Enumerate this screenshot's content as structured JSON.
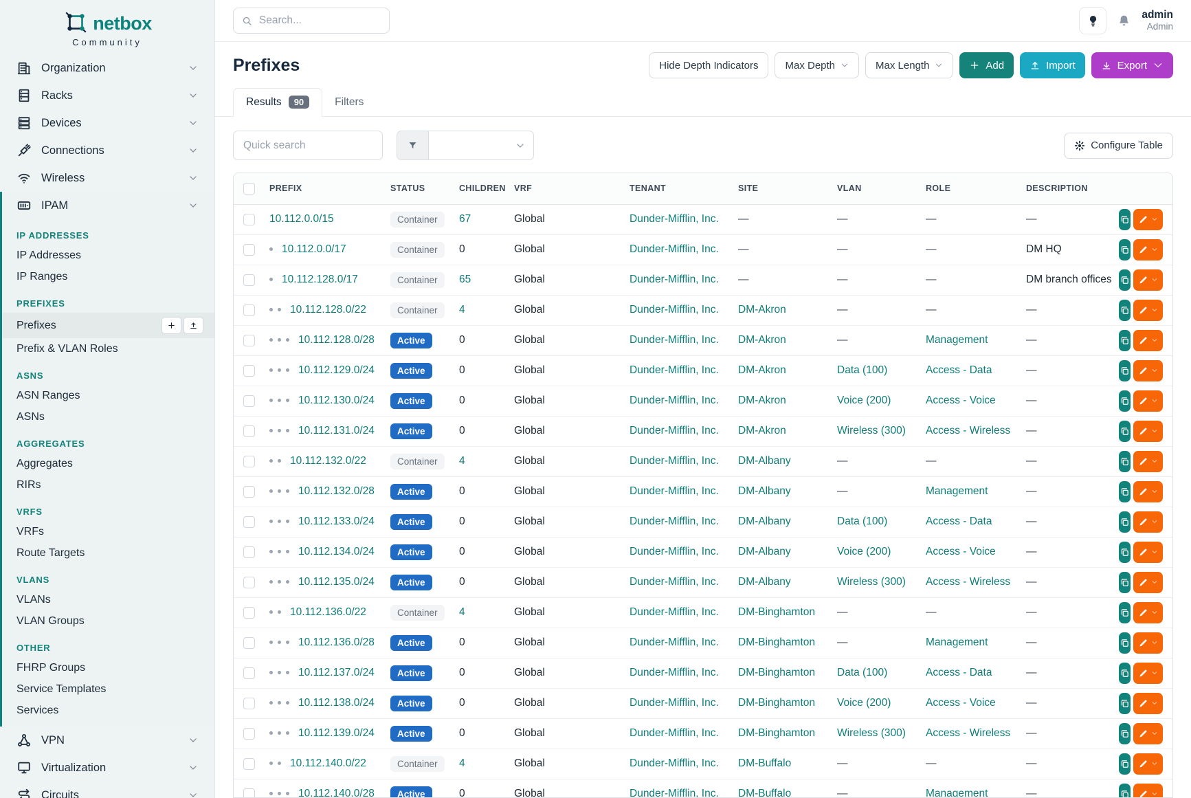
{
  "brand": {
    "name": "netbox",
    "subtitle": "Community"
  },
  "colors": {
    "accent_teal": "#0e827c",
    "link_teal": "#0e7d79",
    "active_badge_blue": "#206bc4",
    "add_green": "#15837a",
    "import_cyan": "#1aa8c2",
    "export_purple": "#ae3ec9",
    "edit_orange": "#f76707",
    "sidebar_bg": "#eef4f3",
    "navy_text": "#17293c"
  },
  "topbar": {
    "search_placeholder": "Search...",
    "user": {
      "name": "admin",
      "role": "Admin"
    },
    "icons": [
      "lightbulb-icon",
      "bell-icon"
    ]
  },
  "sidebar": {
    "top_items": [
      {
        "label": "Organization",
        "icon": "building-icon"
      },
      {
        "label": "Racks",
        "icon": "rack-icon"
      },
      {
        "label": "Devices",
        "icon": "devices-icon"
      },
      {
        "label": "Connections",
        "icon": "plug-icon"
      },
      {
        "label": "Wireless",
        "icon": "wifi-icon"
      }
    ],
    "ipam": {
      "label": "IPAM",
      "icon": "ipam-icon",
      "sections": [
        {
          "title": "IP ADDRESSES",
          "items": [
            {
              "label": "IP Addresses"
            },
            {
              "label": "IP Ranges"
            }
          ]
        },
        {
          "title": "PREFIXES",
          "items": [
            {
              "label": "Prefixes",
              "active": true,
              "quick_buttons": [
                "plus-icon",
                "upload-icon"
              ]
            },
            {
              "label": "Prefix & VLAN Roles"
            }
          ]
        },
        {
          "title": "ASNS",
          "items": [
            {
              "label": "ASN Ranges"
            },
            {
              "label": "ASNs"
            }
          ]
        },
        {
          "title": "AGGREGATES",
          "items": [
            {
              "label": "Aggregates"
            },
            {
              "label": "RIRs"
            }
          ]
        },
        {
          "title": "VRFS",
          "items": [
            {
              "label": "VRFs"
            },
            {
              "label": "Route Targets"
            }
          ]
        },
        {
          "title": "VLANS",
          "items": [
            {
              "label": "VLANs"
            },
            {
              "label": "VLAN Groups"
            }
          ]
        },
        {
          "title": "OTHER",
          "items": [
            {
              "label": "FHRP Groups"
            },
            {
              "label": "Service Templates"
            },
            {
              "label": "Services"
            }
          ]
        }
      ]
    },
    "bottom_items": [
      {
        "label": "VPN",
        "icon": "network-icon"
      },
      {
        "label": "Virtualization",
        "icon": "monitor-icon"
      },
      {
        "label": "Circuits",
        "icon": "circuits-icon"
      }
    ]
  },
  "page": {
    "title": "Prefixes",
    "toolbar": {
      "hide_depth": "Hide Depth Indicators",
      "max_depth": "Max Depth",
      "max_length": "Max Length",
      "add": "Add",
      "import": "Import",
      "export": "Export"
    },
    "tabs": {
      "results": "Results",
      "results_count": "90",
      "filters": "Filters"
    },
    "controls": {
      "quick_search_placeholder": "Quick search",
      "configure_table": "Configure Table"
    }
  },
  "table": {
    "columns": [
      "PREFIX",
      "STATUS",
      "CHILDREN",
      "VRF",
      "TENANT",
      "SITE",
      "VLAN",
      "ROLE",
      "DESCRIPTION"
    ],
    "rows": [
      {
        "depth": 0,
        "prefix": "10.112.0.0/15",
        "status": "Container",
        "children": "67",
        "vrf": "Global",
        "tenant": "Dunder-Mifflin, Inc.",
        "site": "—",
        "vlan": "—",
        "role": "—",
        "description": "—"
      },
      {
        "depth": 1,
        "prefix": "10.112.0.0/17",
        "status": "Container",
        "children": "0",
        "vrf": "Global",
        "tenant": "Dunder-Mifflin, Inc.",
        "site": "—",
        "vlan": "—",
        "role": "—",
        "description": "DM HQ"
      },
      {
        "depth": 1,
        "prefix": "10.112.128.0/17",
        "status": "Container",
        "children": "65",
        "vrf": "Global",
        "tenant": "Dunder-Mifflin, Inc.",
        "site": "—",
        "vlan": "—",
        "role": "—",
        "description": "DM branch offices"
      },
      {
        "depth": 2,
        "prefix": "10.112.128.0/22",
        "status": "Container",
        "children": "4",
        "vrf": "Global",
        "tenant": "Dunder-Mifflin, Inc.",
        "site": "DM-Akron",
        "vlan": "—",
        "role": "—",
        "description": "—"
      },
      {
        "depth": 3,
        "prefix": "10.112.128.0/28",
        "status": "Active",
        "children": "0",
        "vrf": "Global",
        "tenant": "Dunder-Mifflin, Inc.",
        "site": "DM-Akron",
        "vlan": "—",
        "role": "Management",
        "description": "—"
      },
      {
        "depth": 3,
        "prefix": "10.112.129.0/24",
        "status": "Active",
        "children": "0",
        "vrf": "Global",
        "tenant": "Dunder-Mifflin, Inc.",
        "site": "DM-Akron",
        "vlan": "Data (100)",
        "role": "Access - Data",
        "description": "—"
      },
      {
        "depth": 3,
        "prefix": "10.112.130.0/24",
        "status": "Active",
        "children": "0",
        "vrf": "Global",
        "tenant": "Dunder-Mifflin, Inc.",
        "site": "DM-Akron",
        "vlan": "Voice (200)",
        "role": "Access - Voice",
        "description": "—"
      },
      {
        "depth": 3,
        "prefix": "10.112.131.0/24",
        "status": "Active",
        "children": "0",
        "vrf": "Global",
        "tenant": "Dunder-Mifflin, Inc.",
        "site": "DM-Akron",
        "vlan": "Wireless (300)",
        "role": "Access - Wireless",
        "description": "—"
      },
      {
        "depth": 2,
        "prefix": "10.112.132.0/22",
        "status": "Container",
        "children": "4",
        "vrf": "Global",
        "tenant": "Dunder-Mifflin, Inc.",
        "site": "DM-Albany",
        "vlan": "—",
        "role": "—",
        "description": "—"
      },
      {
        "depth": 3,
        "prefix": "10.112.132.0/28",
        "status": "Active",
        "children": "0",
        "vrf": "Global",
        "tenant": "Dunder-Mifflin, Inc.",
        "site": "DM-Albany",
        "vlan": "—",
        "role": "Management",
        "description": "—"
      },
      {
        "depth": 3,
        "prefix": "10.112.133.0/24",
        "status": "Active",
        "children": "0",
        "vrf": "Global",
        "tenant": "Dunder-Mifflin, Inc.",
        "site": "DM-Albany",
        "vlan": "Data (100)",
        "role": "Access - Data",
        "description": "—"
      },
      {
        "depth": 3,
        "prefix": "10.112.134.0/24",
        "status": "Active",
        "children": "0",
        "vrf": "Global",
        "tenant": "Dunder-Mifflin, Inc.",
        "site": "DM-Albany",
        "vlan": "Voice (200)",
        "role": "Access - Voice",
        "description": "—"
      },
      {
        "depth": 3,
        "prefix": "10.112.135.0/24",
        "status": "Active",
        "children": "0",
        "vrf": "Global",
        "tenant": "Dunder-Mifflin, Inc.",
        "site": "DM-Albany",
        "vlan": "Wireless (300)",
        "role": "Access - Wireless",
        "description": "—"
      },
      {
        "depth": 2,
        "prefix": "10.112.136.0/22",
        "status": "Container",
        "children": "4",
        "vrf": "Global",
        "tenant": "Dunder-Mifflin, Inc.",
        "site": "DM-Binghamton",
        "vlan": "—",
        "role": "—",
        "description": "—"
      },
      {
        "depth": 3,
        "prefix": "10.112.136.0/28",
        "status": "Active",
        "children": "0",
        "vrf": "Global",
        "tenant": "Dunder-Mifflin, Inc.",
        "site": "DM-Binghamton",
        "vlan": "—",
        "role": "Management",
        "description": "—"
      },
      {
        "depth": 3,
        "prefix": "10.112.137.0/24",
        "status": "Active",
        "children": "0",
        "vrf": "Global",
        "tenant": "Dunder-Mifflin, Inc.",
        "site": "DM-Binghamton",
        "vlan": "Data (100)",
        "role": "Access - Data",
        "description": "—"
      },
      {
        "depth": 3,
        "prefix": "10.112.138.0/24",
        "status": "Active",
        "children": "0",
        "vrf": "Global",
        "tenant": "Dunder-Mifflin, Inc.",
        "site": "DM-Binghamton",
        "vlan": "Voice (200)",
        "role": "Access - Voice",
        "description": "—"
      },
      {
        "depth": 3,
        "prefix": "10.112.139.0/24",
        "status": "Active",
        "children": "0",
        "vrf": "Global",
        "tenant": "Dunder-Mifflin, Inc.",
        "site": "DM-Binghamton",
        "vlan": "Wireless (300)",
        "role": "Access - Wireless",
        "description": "—"
      },
      {
        "depth": 2,
        "prefix": "10.112.140.0/22",
        "status": "Container",
        "children": "4",
        "vrf": "Global",
        "tenant": "Dunder-Mifflin, Inc.",
        "site": "DM-Buffalo",
        "vlan": "—",
        "role": "—",
        "description": "—"
      },
      {
        "depth": 3,
        "prefix": "10.112.140.0/28",
        "status": "Active",
        "children": "0",
        "vrf": "Global",
        "tenant": "Dunder-Mifflin, Inc.",
        "site": "DM-Buffalo",
        "vlan": "—",
        "role": "Management",
        "description": "—"
      }
    ]
  }
}
